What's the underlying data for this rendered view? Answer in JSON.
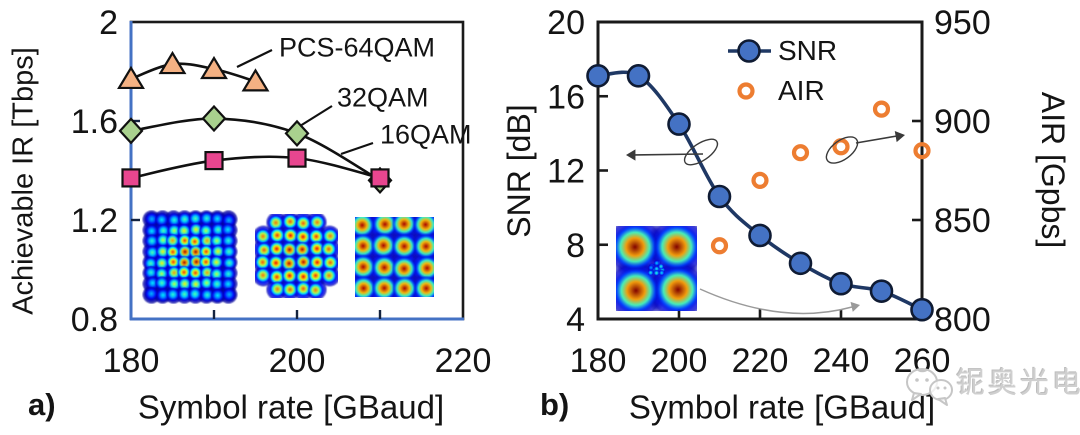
{
  "panels": {
    "a": {
      "label": "a)"
    },
    "b": {
      "label": "b)"
    }
  },
  "colors": {
    "frame": "#1a1a1a",
    "axis_blue": "#4472C4",
    "series_line_black": "#111111",
    "snr_line": "#1F3864",
    "snr_marker_fill": "#4472C4",
    "air_orange": "#ED7D31",
    "pcs64_marker": "#F4B183",
    "qam32_marker": "#A9D18E",
    "qam16_marker": "#E8468F",
    "annotation_gray": "#3a3a3a",
    "inset_arrow_gray": "#9a9a9a",
    "watermark_gray": "#cfcfcf"
  },
  "chart_data": [
    {
      "type": "line",
      "title": "",
      "xlabel": "Symbol rate [GBaud]",
      "ylabel": "Achievable IR [Tbps]",
      "xlim": [
        180,
        220
      ],
      "ylim": [
        0.8,
        2
      ],
      "x_ticks": [
        180,
        200,
        220
      ],
      "x_tick_marks": [
        190,
        200,
        210
      ],
      "y_ticks": [
        0.8,
        1.2,
        1.6,
        2
      ],
      "y_tick_marks": [
        1.2,
        1.6
      ],
      "grid": false,
      "legend_position": "annotated-callouts",
      "series": [
        {
          "name": "PCS-64QAM",
          "marker": "triangle",
          "marker_color": "#F4B183",
          "x": [
            180,
            185,
            190,
            195
          ],
          "values": [
            1.77,
            1.83,
            1.81,
            1.76
          ]
        },
        {
          "name": "32QAM",
          "marker": "diamond",
          "marker_color": "#A9D18E",
          "x": [
            180,
            190,
            200,
            210
          ],
          "values": [
            1.56,
            1.61,
            1.55,
            1.36
          ]
        },
        {
          "name": "16QAM",
          "marker": "square",
          "marker_color": "#E8468F",
          "x": [
            180,
            190,
            200,
            210
          ],
          "values": [
            1.37,
            1.44,
            1.45,
            1.37
          ]
        }
      ],
      "insets": [
        "pcs-64qam-constellation",
        "32qam-constellation",
        "16qam-constellation"
      ]
    },
    {
      "type": "line",
      "title": "",
      "xlabel": "Symbol rate [GBaud]",
      "ylabel_left": "SNR [dB]",
      "ylabel_right": "AIR [Gpbs]",
      "xlim": [
        180,
        260
      ],
      "ylim_left": [
        4,
        20
      ],
      "ylim_right": [
        800,
        950
      ],
      "x_ticks": [
        180,
        200,
        220,
        240,
        260
      ],
      "x_tick_marks": [
        200,
        220,
        240
      ],
      "y_ticks_left": [
        4,
        8,
        12,
        16,
        20
      ],
      "y_tick_marks_left": [
        8,
        12,
        16
      ],
      "y_ticks_right": [
        800,
        850,
        900,
        950
      ],
      "y_tick_marks_right": [
        850,
        900
      ],
      "grid": false,
      "legend_position": "top-center-inside",
      "series": [
        {
          "name": "SNR",
          "axis": "left",
          "marker": "circle",
          "line_color": "#1F3864",
          "marker_color": "#4472C4",
          "x": [
            180,
            190,
            200,
            210,
            220,
            230,
            240,
            250,
            260
          ],
          "values": [
            17.1,
            17.1,
            14.5,
            10.6,
            8.5,
            7.0,
            5.9,
            5.5,
            4.5
          ]
        },
        {
          "name": "AIR",
          "axis": "right",
          "marker": "open-circle",
          "line_color": "none",
          "marker_color": "#ED7D31",
          "x": [
            210,
            220,
            230,
            240,
            250,
            260
          ],
          "values": [
            837,
            870,
            884,
            887,
            906,
            885
          ]
        }
      ],
      "insets": [
        "qpsk-constellation"
      ],
      "annotations": [
        "arrow-to-left-axis",
        "arrow-to-right-axis",
        "curved-arrow-inset-to-high-baud"
      ]
    }
  ],
  "constellations": [
    {
      "id": "const-a1",
      "name": "pcs-64qam-constellation",
      "grid": 8,
      "style": "gaussian"
    },
    {
      "id": "const-a2",
      "name": "32qam-constellation",
      "grid": "cross6",
      "style": "warm"
    },
    {
      "id": "const-a3",
      "name": "16qam-constellation",
      "grid": 4,
      "style": "hot"
    },
    {
      "id": "const-b1",
      "name": "qpsk-constellation",
      "grid": 2,
      "style": "hot-large",
      "center_cluster": true
    }
  ],
  "watermark": {
    "text": "铌奥光电",
    "icon": "wechat-icon"
  }
}
